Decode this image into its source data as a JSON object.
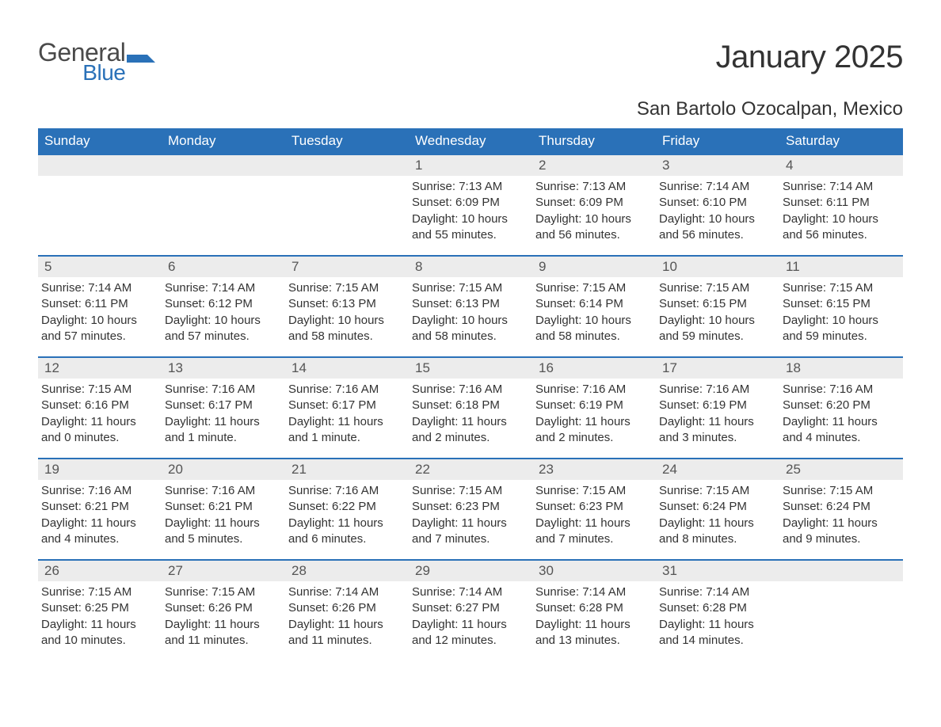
{
  "brand": {
    "general": "General",
    "blue": "Blue",
    "logo_color": "#2a71b8"
  },
  "title": "January 2025",
  "location": "San Bartolo Ozocalpan, Mexico",
  "colors": {
    "header_bg": "#2a71b8",
    "header_text": "#ffffff",
    "daynum_bg": "#ececec",
    "daynum_border": "#2a71b8",
    "body_text": "#333333",
    "page_bg": "#ffffff"
  },
  "typography": {
    "title_fontsize": 40,
    "location_fontsize": 24,
    "header_fontsize": 17,
    "daynum_fontsize": 17,
    "cell_fontsize": 15
  },
  "layout": {
    "columns": 7,
    "weeks": 5,
    "first_weekday_index": 3
  },
  "weekdays": [
    "Sunday",
    "Monday",
    "Tuesday",
    "Wednesday",
    "Thursday",
    "Friday",
    "Saturday"
  ],
  "days": [
    {
      "n": 1,
      "sunrise": "7:13 AM",
      "sunset": "6:09 PM",
      "daylight": "10 hours and 55 minutes."
    },
    {
      "n": 2,
      "sunrise": "7:13 AM",
      "sunset": "6:09 PM",
      "daylight": "10 hours and 56 minutes."
    },
    {
      "n": 3,
      "sunrise": "7:14 AM",
      "sunset": "6:10 PM",
      "daylight": "10 hours and 56 minutes."
    },
    {
      "n": 4,
      "sunrise": "7:14 AM",
      "sunset": "6:11 PM",
      "daylight": "10 hours and 56 minutes."
    },
    {
      "n": 5,
      "sunrise": "7:14 AM",
      "sunset": "6:11 PM",
      "daylight": "10 hours and 57 minutes."
    },
    {
      "n": 6,
      "sunrise": "7:14 AM",
      "sunset": "6:12 PM",
      "daylight": "10 hours and 57 minutes."
    },
    {
      "n": 7,
      "sunrise": "7:15 AM",
      "sunset": "6:13 PM",
      "daylight": "10 hours and 58 minutes."
    },
    {
      "n": 8,
      "sunrise": "7:15 AM",
      "sunset": "6:13 PM",
      "daylight": "10 hours and 58 minutes."
    },
    {
      "n": 9,
      "sunrise": "7:15 AM",
      "sunset": "6:14 PM",
      "daylight": "10 hours and 58 minutes."
    },
    {
      "n": 10,
      "sunrise": "7:15 AM",
      "sunset": "6:15 PM",
      "daylight": "10 hours and 59 minutes."
    },
    {
      "n": 11,
      "sunrise": "7:15 AM",
      "sunset": "6:15 PM",
      "daylight": "10 hours and 59 minutes."
    },
    {
      "n": 12,
      "sunrise": "7:15 AM",
      "sunset": "6:16 PM",
      "daylight": "11 hours and 0 minutes."
    },
    {
      "n": 13,
      "sunrise": "7:16 AM",
      "sunset": "6:17 PM",
      "daylight": "11 hours and 1 minute."
    },
    {
      "n": 14,
      "sunrise": "7:16 AM",
      "sunset": "6:17 PM",
      "daylight": "11 hours and 1 minute."
    },
    {
      "n": 15,
      "sunrise": "7:16 AM",
      "sunset": "6:18 PM",
      "daylight": "11 hours and 2 minutes."
    },
    {
      "n": 16,
      "sunrise": "7:16 AM",
      "sunset": "6:19 PM",
      "daylight": "11 hours and 2 minutes."
    },
    {
      "n": 17,
      "sunrise": "7:16 AM",
      "sunset": "6:19 PM",
      "daylight": "11 hours and 3 minutes."
    },
    {
      "n": 18,
      "sunrise": "7:16 AM",
      "sunset": "6:20 PM",
      "daylight": "11 hours and 4 minutes."
    },
    {
      "n": 19,
      "sunrise": "7:16 AM",
      "sunset": "6:21 PM",
      "daylight": "11 hours and 4 minutes."
    },
    {
      "n": 20,
      "sunrise": "7:16 AM",
      "sunset": "6:21 PM",
      "daylight": "11 hours and 5 minutes."
    },
    {
      "n": 21,
      "sunrise": "7:16 AM",
      "sunset": "6:22 PM",
      "daylight": "11 hours and 6 minutes."
    },
    {
      "n": 22,
      "sunrise": "7:15 AM",
      "sunset": "6:23 PM",
      "daylight": "11 hours and 7 minutes."
    },
    {
      "n": 23,
      "sunrise": "7:15 AM",
      "sunset": "6:23 PM",
      "daylight": "11 hours and 7 minutes."
    },
    {
      "n": 24,
      "sunrise": "7:15 AM",
      "sunset": "6:24 PM",
      "daylight": "11 hours and 8 minutes."
    },
    {
      "n": 25,
      "sunrise": "7:15 AM",
      "sunset": "6:24 PM",
      "daylight": "11 hours and 9 minutes."
    },
    {
      "n": 26,
      "sunrise": "7:15 AM",
      "sunset": "6:25 PM",
      "daylight": "11 hours and 10 minutes."
    },
    {
      "n": 27,
      "sunrise": "7:15 AM",
      "sunset": "6:26 PM",
      "daylight": "11 hours and 11 minutes."
    },
    {
      "n": 28,
      "sunrise": "7:14 AM",
      "sunset": "6:26 PM",
      "daylight": "11 hours and 11 minutes."
    },
    {
      "n": 29,
      "sunrise": "7:14 AM",
      "sunset": "6:27 PM",
      "daylight": "11 hours and 12 minutes."
    },
    {
      "n": 30,
      "sunrise": "7:14 AM",
      "sunset": "6:28 PM",
      "daylight": "11 hours and 13 minutes."
    },
    {
      "n": 31,
      "sunrise": "7:14 AM",
      "sunset": "6:28 PM",
      "daylight": "11 hours and 14 minutes."
    }
  ],
  "labels": {
    "sunrise": "Sunrise: ",
    "sunset": "Sunset: ",
    "daylight": "Daylight: "
  }
}
